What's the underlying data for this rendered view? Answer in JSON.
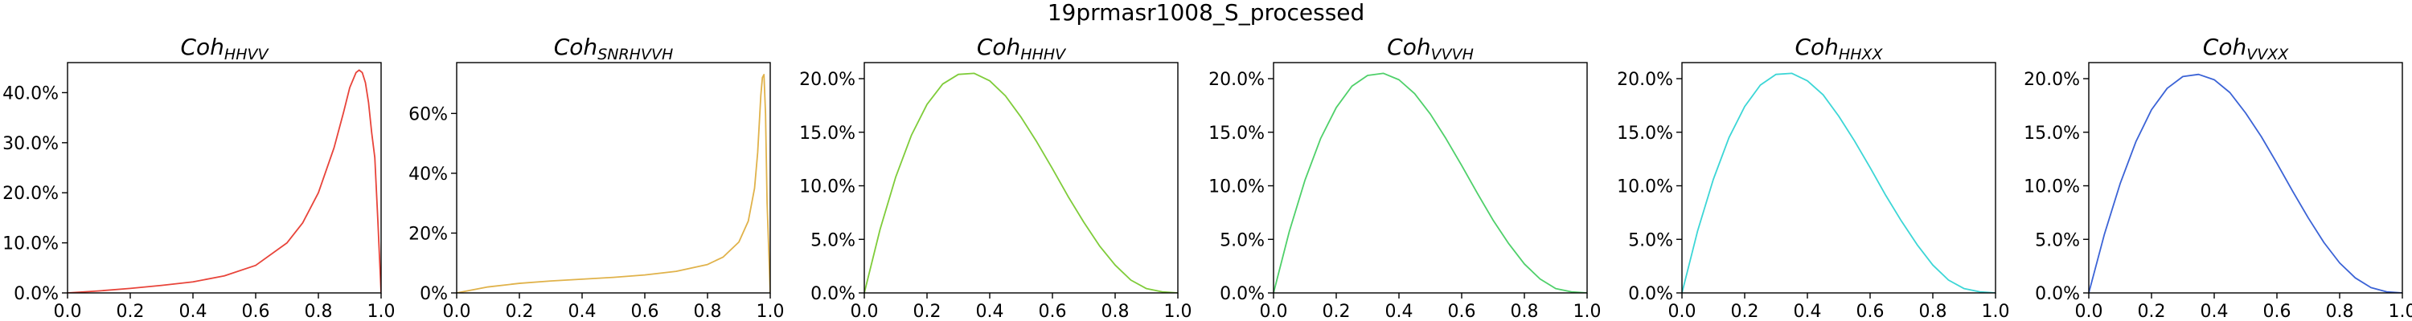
{
  "figure": {
    "title": "19prmasr1008_S_processed"
  },
  "chart_data": [
    {
      "type": "line",
      "title_main": "Coh",
      "title_sub": "HHVV",
      "color": "#e8443a",
      "xlim": [
        0,
        1
      ],
      "ylim": [
        0,
        0.46
      ],
      "xticks": [
        0,
        0.2,
        0.4,
        0.6,
        0.8,
        1.0
      ],
      "xtick_labels": [
        "0.0",
        "0.2",
        "0.4",
        "0.6",
        "0.8",
        "1.0"
      ],
      "yticks": [
        0,
        0.1,
        0.2,
        0.3,
        0.4
      ],
      "ytick_labels": [
        "0.0%",
        "10.0%",
        "20.0%",
        "30.0%",
        "40.0%"
      ],
      "x": [
        0,
        0.1,
        0.2,
        0.3,
        0.4,
        0.5,
        0.6,
        0.7,
        0.75,
        0.8,
        0.85,
        0.88,
        0.9,
        0.92,
        0.93,
        0.94,
        0.95,
        0.96,
        0.97,
        0.98,
        0.99,
        1.0
      ],
      "y": [
        0.0,
        0.004,
        0.009,
        0.015,
        0.022,
        0.034,
        0.055,
        0.1,
        0.14,
        0.2,
        0.29,
        0.36,
        0.41,
        0.44,
        0.445,
        0.44,
        0.42,
        0.38,
        0.32,
        0.27,
        0.14,
        0.0
      ]
    },
    {
      "type": "line",
      "title_main": "Coh",
      "title_sub": "SNRHVVH",
      "color": "#e0b24a",
      "xlim": [
        0,
        1
      ],
      "ylim": [
        0,
        0.77
      ],
      "xticks": [
        0,
        0.2,
        0.4,
        0.6,
        0.8,
        1.0
      ],
      "xtick_labels": [
        "0.0",
        "0.2",
        "0.4",
        "0.6",
        "0.8",
        "1.0"
      ],
      "yticks": [
        0,
        0.2,
        0.4,
        0.6
      ],
      "ytick_labels": [
        "0%",
        "20%",
        "40%",
        "60%"
      ],
      "x": [
        0,
        0.05,
        0.1,
        0.2,
        0.3,
        0.4,
        0.5,
        0.6,
        0.7,
        0.8,
        0.85,
        0.9,
        0.93,
        0.95,
        0.96,
        0.97,
        0.975,
        0.98,
        0.985,
        0.99,
        1.0
      ],
      "y": [
        0.0,
        0.01,
        0.02,
        0.032,
        0.04,
        0.046,
        0.052,
        0.06,
        0.072,
        0.095,
        0.12,
        0.17,
        0.24,
        0.35,
        0.47,
        0.66,
        0.72,
        0.73,
        0.6,
        0.3,
        0.0
      ]
    },
    {
      "type": "line",
      "title_main": "Coh",
      "title_sub": "HHHV",
      "color": "#7fcc3a",
      "xlim": [
        0,
        1
      ],
      "ylim": [
        0,
        0.215
      ],
      "xticks": [
        0,
        0.2,
        0.4,
        0.6,
        0.8,
        1.0
      ],
      "xtick_labels": [
        "0.0",
        "0.2",
        "0.4",
        "0.6",
        "0.8",
        "1.0"
      ],
      "yticks": [
        0,
        0.05,
        0.1,
        0.15,
        0.2
      ],
      "ytick_labels": [
        "0.0%",
        "5.0%",
        "10.0%",
        "15.0%",
        "20.0%"
      ],
      "x": [
        0,
        0.05,
        0.1,
        0.15,
        0.2,
        0.25,
        0.3,
        0.35,
        0.4,
        0.45,
        0.5,
        0.55,
        0.6,
        0.65,
        0.7,
        0.75,
        0.8,
        0.85,
        0.9,
        0.95,
        1.0
      ],
      "y": [
        0.0,
        0.059,
        0.108,
        0.147,
        0.176,
        0.195,
        0.204,
        0.205,
        0.198,
        0.184,
        0.164,
        0.141,
        0.116,
        0.09,
        0.066,
        0.044,
        0.026,
        0.012,
        0.004,
        0.001,
        0.0
      ]
    },
    {
      "type": "line",
      "title_main": "Coh",
      "title_sub": "VVVH",
      "color": "#4fd06a",
      "xlim": [
        0,
        1
      ],
      "ylim": [
        0,
        0.215
      ],
      "xticks": [
        0,
        0.2,
        0.4,
        0.6,
        0.8,
        1.0
      ],
      "xtick_labels": [
        "0.0",
        "0.2",
        "0.4",
        "0.6",
        "0.8",
        "1.0"
      ],
      "yticks": [
        0,
        0.05,
        0.1,
        0.15,
        0.2
      ],
      "ytick_labels": [
        "0.0%",
        "5.0%",
        "10.0%",
        "15.0%",
        "20.0%"
      ],
      "x": [
        0,
        0.05,
        0.1,
        0.15,
        0.2,
        0.25,
        0.3,
        0.35,
        0.4,
        0.45,
        0.5,
        0.55,
        0.6,
        0.65,
        0.7,
        0.75,
        0.8,
        0.85,
        0.9,
        0.95,
        1.0
      ],
      "y": [
        0.0,
        0.057,
        0.105,
        0.144,
        0.173,
        0.193,
        0.203,
        0.205,
        0.199,
        0.186,
        0.167,
        0.144,
        0.119,
        0.093,
        0.068,
        0.046,
        0.027,
        0.013,
        0.004,
        0.001,
        0.0
      ]
    },
    {
      "type": "line",
      "title_main": "Coh",
      "title_sub": "HHXX",
      "color": "#3cd6d6",
      "xlim": [
        0,
        1
      ],
      "ylim": [
        0,
        0.215
      ],
      "xticks": [
        0,
        0.2,
        0.4,
        0.6,
        0.8,
        1.0
      ],
      "xtick_labels": [
        "0.0",
        "0.2",
        "0.4",
        "0.6",
        "0.8",
        "1.0"
      ],
      "yticks": [
        0,
        0.05,
        0.1,
        0.15,
        0.2
      ],
      "ytick_labels": [
        "0.0%",
        "5.0%",
        "10.0%",
        "15.0%",
        "20.0%"
      ],
      "x": [
        0,
        0.05,
        0.1,
        0.15,
        0.2,
        0.25,
        0.3,
        0.35,
        0.4,
        0.45,
        0.5,
        0.55,
        0.6,
        0.65,
        0.7,
        0.75,
        0.8,
        0.85,
        0.9,
        0.95,
        1.0
      ],
      "y": [
        0.0,
        0.058,
        0.106,
        0.145,
        0.174,
        0.194,
        0.204,
        0.205,
        0.198,
        0.185,
        0.165,
        0.142,
        0.117,
        0.091,
        0.067,
        0.045,
        0.026,
        0.012,
        0.004,
        0.001,
        0.0
      ]
    },
    {
      "type": "line",
      "title_main": "Coh",
      "title_sub": "VVXX",
      "color": "#3b63d6",
      "xlim": [
        0,
        1
      ],
      "ylim": [
        0,
        0.215
      ],
      "xticks": [
        0,
        0.2,
        0.4,
        0.6,
        0.8,
        1.0
      ],
      "xtick_labels": [
        "0.0",
        "0.2",
        "0.4",
        "0.6",
        "0.8",
        "1.0"
      ],
      "yticks": [
        0,
        0.05,
        0.1,
        0.15,
        0.2
      ],
      "ytick_labels": [
        "0.0%",
        "5.0%",
        "10.0%",
        "15.0%",
        "20.0%"
      ],
      "x": [
        0,
        0.05,
        0.1,
        0.15,
        0.2,
        0.25,
        0.3,
        0.35,
        0.4,
        0.45,
        0.5,
        0.55,
        0.6,
        0.65,
        0.7,
        0.75,
        0.8,
        0.85,
        0.9,
        0.95,
        1.0
      ],
      "y": [
        0.0,
        0.055,
        0.102,
        0.141,
        0.171,
        0.191,
        0.202,
        0.204,
        0.199,
        0.187,
        0.168,
        0.146,
        0.121,
        0.095,
        0.07,
        0.047,
        0.028,
        0.014,
        0.005,
        0.001,
        0.0
      ]
    }
  ]
}
